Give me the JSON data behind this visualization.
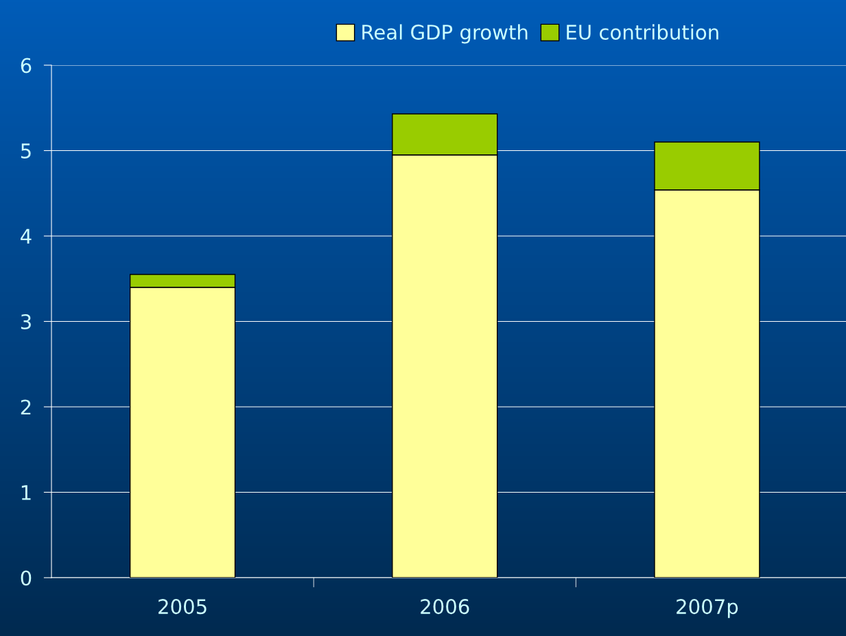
{
  "chart_data": {
    "type": "bar",
    "stacked": true,
    "categories": [
      "2005",
      "2006",
      "2007p"
    ],
    "series": [
      {
        "name": "Real GDP growth",
        "color": "#ffff99",
        "values": [
          3.4,
          4.95,
          4.54
        ]
      },
      {
        "name": "EU contribution",
        "color": "#99cc00",
        "values": [
          0.15,
          0.48,
          0.56
        ]
      }
    ],
    "ylim": [
      0,
      6
    ],
    "yticks": [
      0,
      1,
      2,
      3,
      4,
      5,
      6
    ],
    "grid": "y",
    "legend": "top"
  }
}
